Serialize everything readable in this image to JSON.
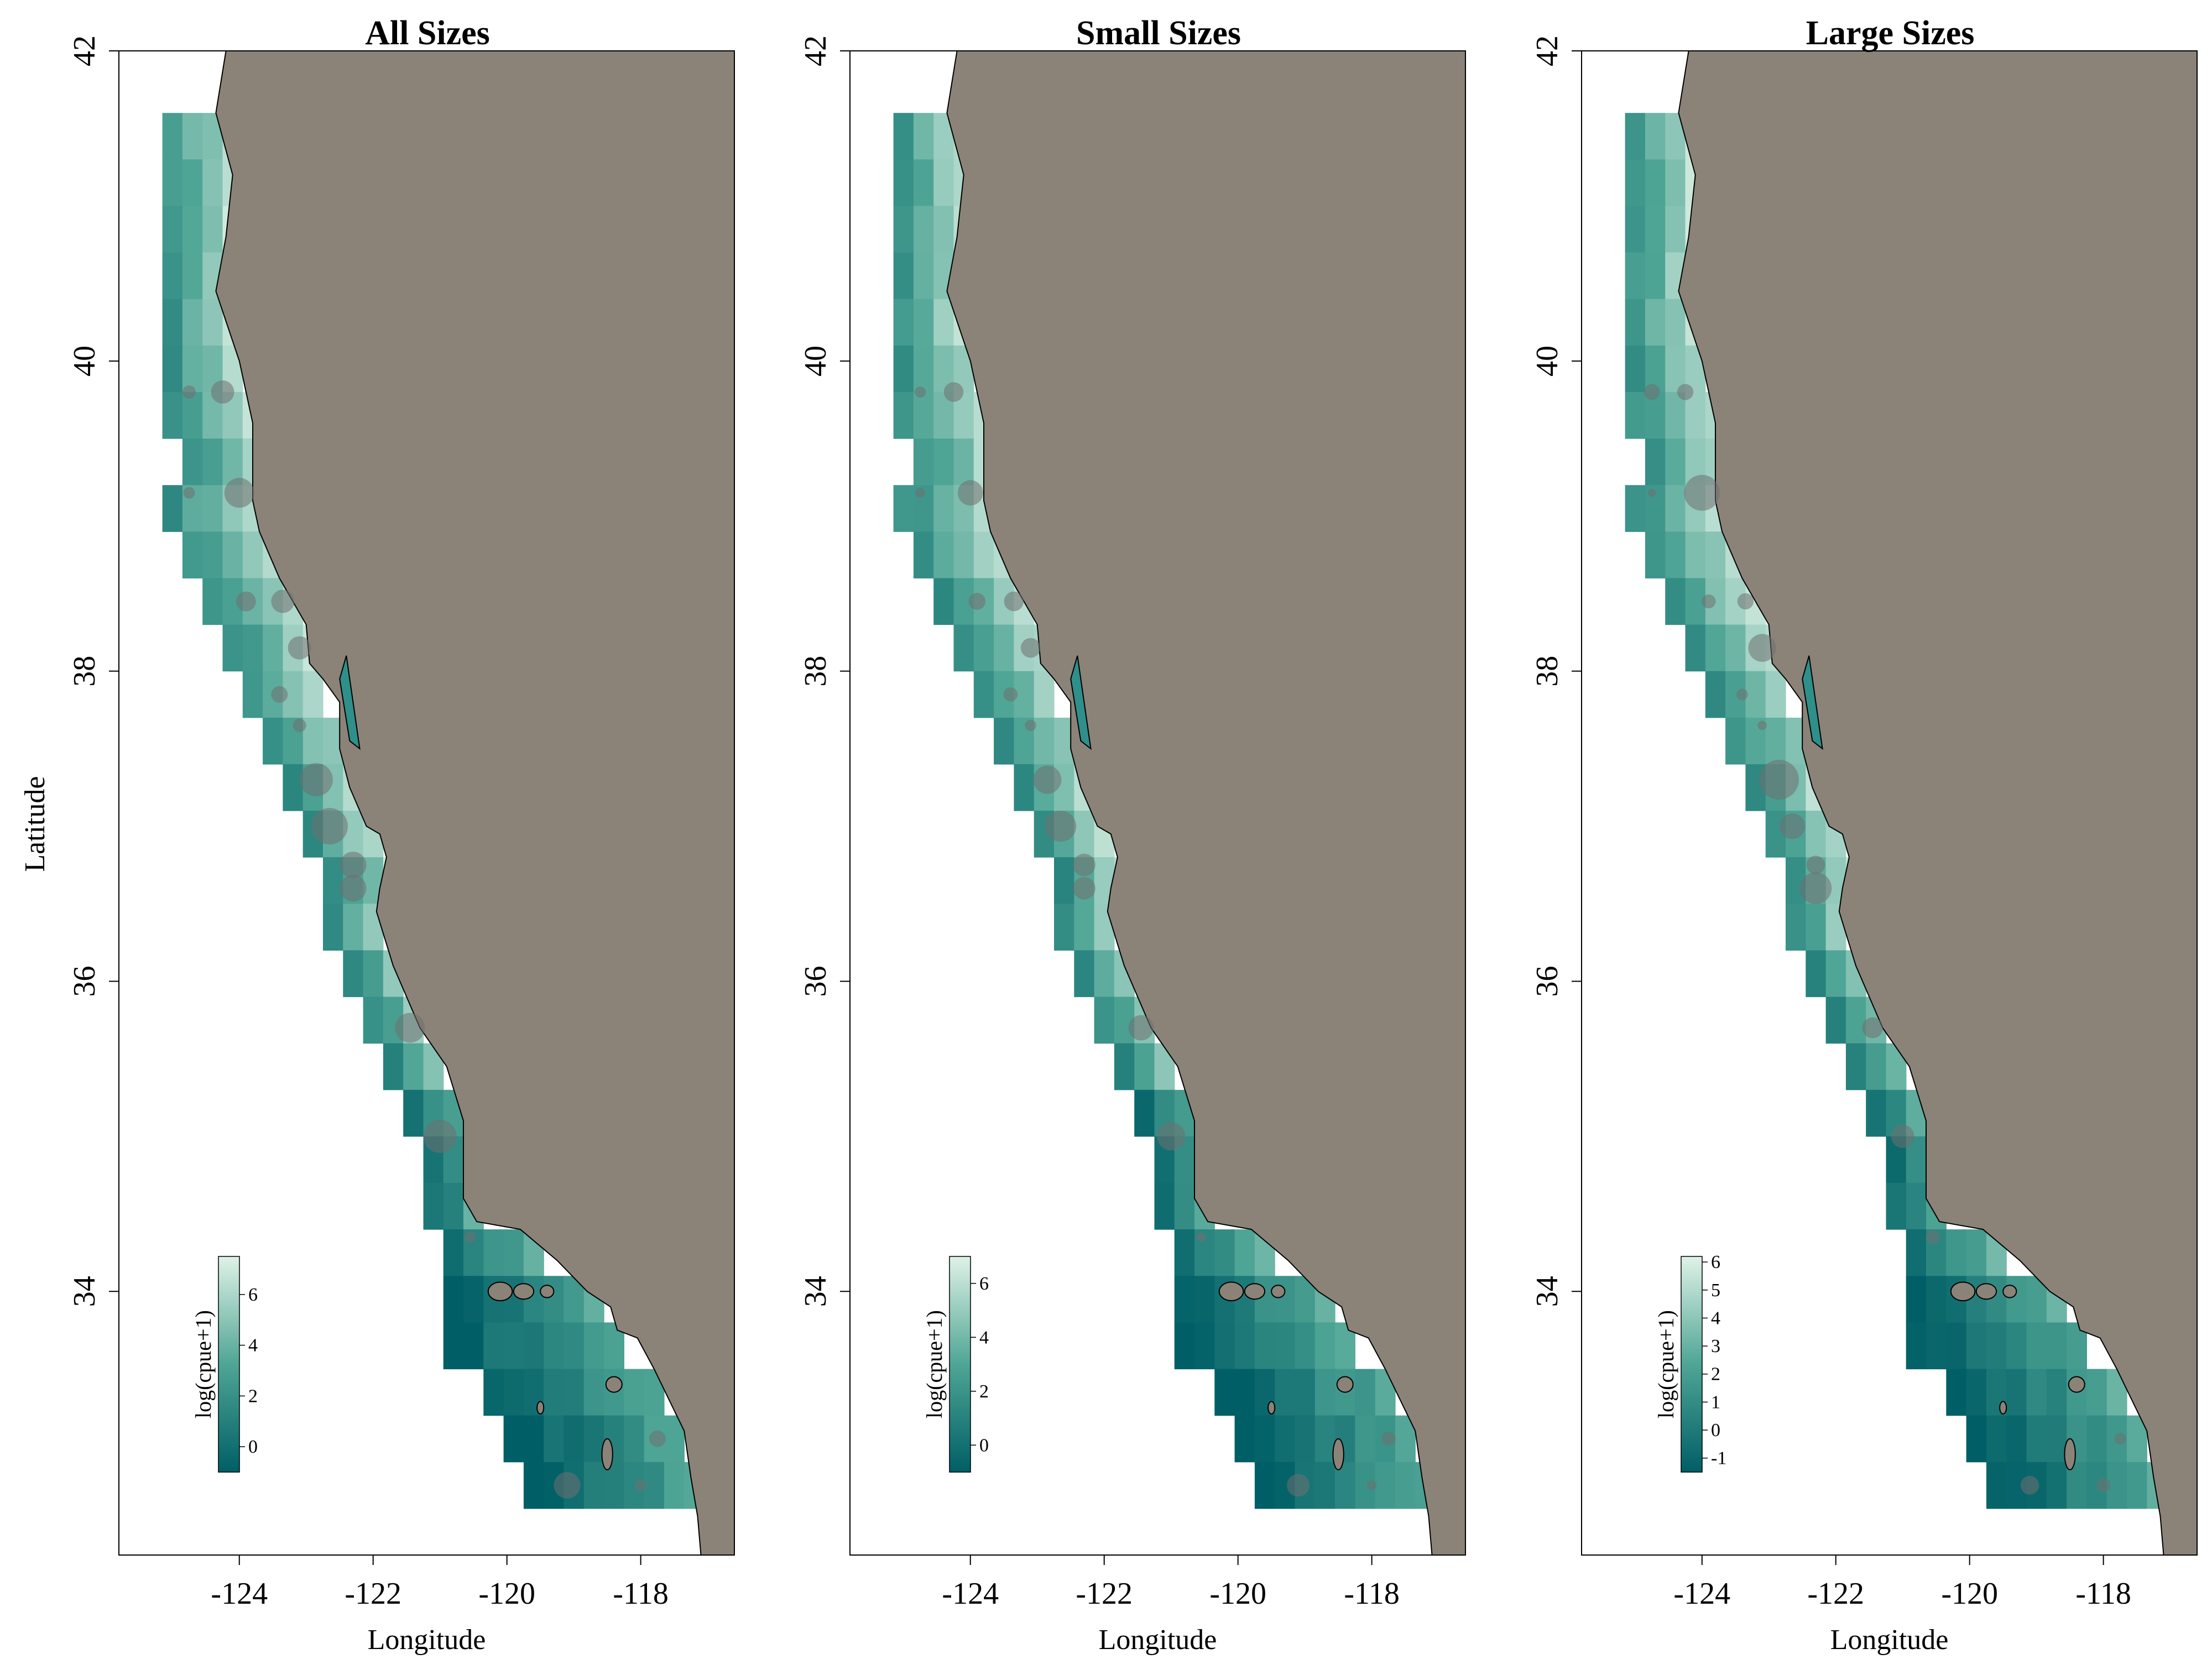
{
  "figure": {
    "axes": {
      "xlabel": "Longitude",
      "ylabel": "Latitude",
      "xlim": [
        -125.8,
        -116.6
      ],
      "ylim": [
        32.3,
        42.0
      ],
      "xticks": [
        -124,
        -122,
        -120,
        -118
      ],
      "yticks": [
        34,
        36,
        38,
        40,
        42
      ]
    },
    "legend_title": "log(cpue+1)",
    "colors": {
      "land": "#8b8378",
      "coastline": "#000000",
      "low": "#005f66",
      "mid": "#4fa595",
      "high": "#dff2e6",
      "points": "#707070"
    },
    "panels": [
      {
        "title": "All Sizes",
        "legend_ticks": [
          "0",
          "2",
          "4",
          "6"
        ],
        "legend_range": [
          -1,
          7.5
        ],
        "show_ylabel": true,
        "show_xlabel": true
      },
      {
        "title": "Small Sizes",
        "legend_ticks": [
          "0",
          "2",
          "4",
          "6"
        ],
        "legend_range": [
          -1,
          7
        ],
        "show_ylabel": false,
        "show_xlabel": true
      },
      {
        "title": "Large Sizes",
        "legend_ticks": [
          "-1",
          "0",
          "1",
          "2",
          "3",
          "4",
          "5",
          "6"
        ],
        "legend_range": [
          -1.5,
          6.2
        ],
        "show_ylabel": false,
        "show_xlabel": true
      }
    ]
  }
}
